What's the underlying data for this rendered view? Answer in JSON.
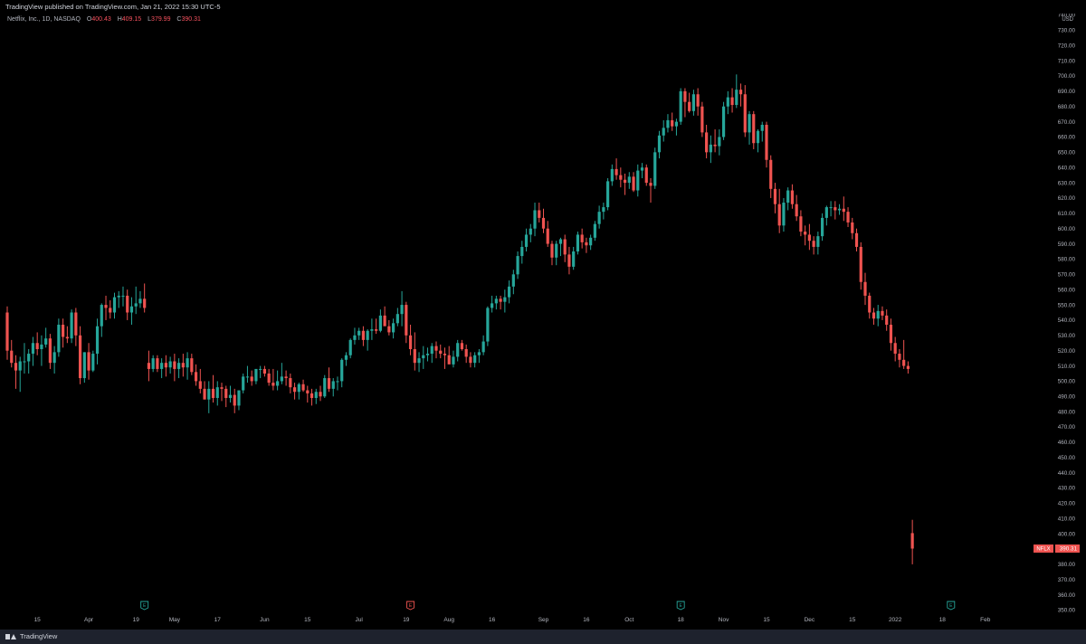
{
  "header": {
    "published_text": "TradingView published on TradingView.com, Jan 21, 2022 15:30 UTC-5"
  },
  "legend": {
    "symbol_text": "Netflix, Inc., 1D, NASDAQ",
    "open_label": "O",
    "open_value": "400.43",
    "high_label": "H",
    "high_value": "409.15",
    "low_label": "L",
    "low_value": "379.99",
    "close_label": "C",
    "close_value": "390.31"
  },
  "footer": {
    "brand": "TradingView"
  },
  "colors": {
    "background": "#000000",
    "up": "#26a69a",
    "down": "#ef5350",
    "axis_text": "#b2b5be",
    "event_up": "#26a69a",
    "event_down": "#ef5350"
  },
  "chart_data": {
    "type": "candlestick",
    "symbol": "NFLX",
    "last_price": "390.31",
    "currency": "USD",
    "ylim": [
      345,
      745
    ],
    "y_ticks": [
      350,
      360,
      370,
      380,
      390,
      400,
      410,
      420,
      430,
      440,
      450,
      460,
      470,
      480,
      490,
      500,
      510,
      520,
      530,
      540,
      550,
      560,
      570,
      580,
      590,
      600,
      610,
      620,
      630,
      640,
      650,
      660,
      670,
      680,
      690,
      700,
      710,
      720,
      730,
      740
    ],
    "x_ticks": [
      {
        "label": "15",
        "i": 7
      },
      {
        "label": "Apr",
        "i": 19
      },
      {
        "label": "19",
        "i": 30
      },
      {
        "label": "May",
        "i": 39
      },
      {
        "label": "17",
        "i": 49
      },
      {
        "label": "Jun",
        "i": 60
      },
      {
        "label": "15",
        "i": 70
      },
      {
        "label": "Jul",
        "i": 82
      },
      {
        "label": "19",
        "i": 93
      },
      {
        "label": "Aug",
        "i": 103
      },
      {
        "label": "16",
        "i": 113
      },
      {
        "label": "Sep",
        "i": 125
      },
      {
        "label": "16",
        "i": 135
      },
      {
        "label": "Oct",
        "i": 145
      },
      {
        "label": "18",
        "i": 157
      },
      {
        "label": "Nov",
        "i": 167
      },
      {
        "label": "15",
        "i": 177
      },
      {
        "label": "Dec",
        "i": 187
      },
      {
        "label": "15",
        "i": 197
      },
      {
        "label": "2022",
        "i": 207
      },
      {
        "label": "18",
        "i": 218
      },
      {
        "label": "Feb",
        "i": 228
      }
    ],
    "events": [
      {
        "type": "earnings",
        "label": "E",
        "i": 32,
        "color": "#26a69a"
      },
      {
        "type": "earnings",
        "label": "E",
        "i": 94,
        "color": "#ef5350"
      },
      {
        "type": "earnings",
        "label": "E",
        "i": 157,
        "color": "#26a69a"
      },
      {
        "type": "earnings",
        "label": "E",
        "i": 220,
        "color": "#26a69a"
      }
    ],
    "ohlc": [
      [
        545.0,
        549.0,
        514.0,
        520.0
      ],
      [
        520.0,
        527.0,
        509.0,
        512.0
      ],
      [
        512.0,
        517.0,
        495.0,
        507.0
      ],
      [
        507.0,
        516.0,
        493.0,
        513.0
      ],
      [
        513.0,
        525.0,
        505.0,
        513.0
      ],
      [
        513.0,
        521.0,
        505.0,
        518.0
      ],
      [
        518.0,
        529.0,
        510.0,
        525.0
      ],
      [
        525.0,
        532.0,
        517.0,
        521.0
      ],
      [
        521.0,
        530.0,
        510.0,
        524.0
      ],
      [
        524.0,
        535.0,
        522.0,
        528.0
      ],
      [
        528.0,
        531.0,
        508.0,
        512.0
      ],
      [
        512.0,
        523.0,
        505.0,
        519.0
      ],
      [
        519.0,
        541.0,
        516.0,
        537.0
      ],
      [
        537.0,
        541.0,
        522.0,
        529.0
      ],
      [
        529.0,
        536.0,
        525.0,
        528.0
      ],
      [
        528.0,
        547.0,
        525.0,
        545.0
      ],
      [
        545.0,
        548.0,
        523.0,
        530.0
      ],
      [
        530.0,
        536.0,
        498.0,
        502.0
      ],
      [
        502.0,
        519.0,
        499.0,
        519.0
      ],
      [
        519.0,
        525.0,
        501.0,
        507.0
      ],
      [
        507.0,
        520.0,
        506.0,
        518.0
      ],
      [
        518.0,
        541.0,
        511.0,
        536.0
      ],
      [
        536.0,
        551.0,
        529.0,
        550.0
      ],
      [
        550.0,
        556.0,
        540.0,
        548.0
      ],
      [
        548.0,
        553.0,
        541.0,
        545.0
      ],
      [
        545.0,
        558.0,
        541.0,
        555.0
      ],
      [
        555.0,
        559.0,
        548.0,
        556.0
      ],
      [
        556.0,
        562.0,
        549.0,
        556.0
      ],
      [
        556.0,
        560.0,
        540.0,
        545.0
      ],
      [
        545.0,
        555.0,
        537.0,
        549.0
      ],
      [
        549.0,
        562.0,
        544.0,
        551.0
      ],
      [
        551.0,
        559.0,
        548.0,
        554.0
      ],
      [
        554.0,
        564.0,
        545.0,
        548.0
      ],
      [
        512.0,
        520.0,
        500.0,
        508.0
      ],
      [
        508.0,
        517.0,
        506.0,
        515.0
      ],
      [
        515.0,
        517.0,
        506.0,
        508.0
      ],
      [
        508.0,
        515.0,
        502.0,
        512.0
      ],
      [
        512.0,
        517.0,
        503.0,
        509.0
      ],
      [
        509.0,
        516.0,
        505.0,
        513.0
      ],
      [
        513.0,
        518.0,
        500.0,
        508.0
      ],
      [
        508.0,
        515.0,
        502.0,
        512.0
      ],
      [
        512.0,
        518.0,
        503.0,
        509.0
      ],
      [
        509.0,
        519.0,
        501.0,
        515.0
      ],
      [
        515.0,
        518.0,
        504.0,
        506.0
      ],
      [
        506.0,
        511.0,
        497.0,
        500.0
      ],
      [
        500.0,
        508.0,
        492.0,
        495.0
      ],
      [
        495.0,
        500.0,
        488.0,
        488.0
      ],
      [
        488.0,
        500.0,
        479.0,
        495.0
      ],
      [
        495.0,
        504.0,
        486.0,
        489.0
      ],
      [
        489.0,
        500.0,
        484.0,
        496.0
      ],
      [
        496.0,
        499.0,
        487.0,
        495.0
      ],
      [
        495.0,
        497.0,
        483.0,
        489.0
      ],
      [
        489.0,
        497.0,
        486.0,
        491.0
      ],
      [
        491.0,
        495.0,
        479.0,
        484.0
      ],
      [
        484.0,
        494.0,
        481.0,
        494.0
      ],
      [
        494.0,
        505.0,
        492.0,
        503.0
      ],
      [
        503.0,
        510.0,
        499.0,
        503.0
      ],
      [
        503.0,
        507.0,
        497.0,
        500.0
      ],
      [
        500.0,
        508.0,
        498.0,
        508.0
      ],
      [
        508.0,
        510.0,
        502.0,
        508.0
      ],
      [
        508.0,
        510.0,
        503.0,
        505.0
      ],
      [
        505.0,
        508.0,
        497.0,
        499.0
      ],
      [
        499.0,
        508.0,
        494.0,
        497.0
      ],
      [
        497.0,
        507.0,
        494.0,
        500.0
      ],
      [
        500.0,
        512.0,
        498.0,
        503.0
      ],
      [
        503.0,
        507.0,
        497.0,
        502.0
      ],
      [
        502.0,
        505.0,
        492.0,
        496.0
      ],
      [
        496.0,
        499.0,
        488.0,
        493.0
      ],
      [
        493.0,
        499.0,
        488.0,
        498.0
      ],
      [
        498.0,
        501.0,
        493.0,
        494.0
      ],
      [
        494.0,
        497.0,
        486.0,
        492.0
      ],
      [
        492.0,
        495.0,
        484.0,
        489.0
      ],
      [
        489.0,
        495.0,
        485.0,
        493.0
      ],
      [
        493.0,
        497.0,
        487.0,
        490.0
      ],
      [
        490.0,
        504.0,
        489.0,
        502.0
      ],
      [
        502.0,
        509.0,
        493.0,
        495.0
      ],
      [
        495.0,
        502.0,
        490.0,
        500.0
      ],
      [
        500.0,
        503.0,
        494.0,
        500.0
      ],
      [
        500.0,
        515.0,
        496.0,
        514.0
      ],
      [
        514.0,
        519.0,
        510.0,
        517.0
      ],
      [
        517.0,
        528.0,
        515.0,
        527.0
      ],
      [
        527.0,
        535.0,
        524.0,
        530.0
      ],
      [
        530.0,
        535.0,
        527.0,
        533.0
      ],
      [
        533.0,
        536.0,
        523.0,
        527.0
      ],
      [
        527.0,
        534.0,
        520.0,
        533.0
      ],
      [
        533.0,
        541.0,
        527.0,
        534.0
      ],
      [
        534.0,
        541.0,
        531.0,
        533.0
      ],
      [
        533.0,
        547.0,
        532.0,
        543.0
      ],
      [
        543.0,
        549.0,
        537.0,
        536.0
      ],
      [
        536.0,
        540.0,
        530.0,
        532.0
      ],
      [
        532.0,
        541.0,
        528.0,
        538.0
      ],
      [
        538.0,
        548.0,
        536.0,
        544.0
      ],
      [
        544.0,
        559.0,
        536.0,
        550.0
      ],
      [
        550.0,
        552.0,
        525.0,
        530.0
      ],
      [
        530.0,
        537.0,
        517.0,
        521.0
      ],
      [
        521.0,
        532.0,
        507.0,
        512.0
      ],
      [
        512.0,
        519.0,
        506.0,
        515.0
      ],
      [
        515.0,
        523.0,
        508.0,
        517.0
      ],
      [
        517.0,
        522.0,
        513.0,
        518.0
      ],
      [
        518.0,
        525.0,
        512.0,
        523.0
      ],
      [
        523.0,
        526.0,
        515.0,
        520.0
      ],
      [
        520.0,
        524.0,
        515.0,
        518.0
      ],
      [
        518.0,
        522.0,
        508.0,
        517.0
      ],
      [
        517.0,
        523.0,
        514.0,
        511.0
      ],
      [
        511.0,
        520.0,
        509.0,
        516.0
      ],
      [
        516.0,
        527.0,
        513.0,
        525.0
      ],
      [
        525.0,
        527.0,
        520.0,
        521.0
      ],
      [
        521.0,
        524.0,
        512.0,
        516.0
      ],
      [
        516.0,
        519.0,
        509.0,
        512.0
      ],
      [
        512.0,
        519.0,
        509.0,
        517.0
      ],
      [
        517.0,
        521.0,
        512.0,
        519.0
      ],
      [
        519.0,
        530.0,
        517.0,
        526.0
      ],
      [
        526.0,
        549.0,
        523.0,
        548.0
      ],
      [
        548.0,
        556.0,
        545.0,
        551.0
      ],
      [
        551.0,
        556.0,
        547.0,
        554.0
      ],
      [
        554.0,
        556.0,
        547.0,
        552.0
      ],
      [
        552.0,
        560.0,
        545.0,
        555.0
      ],
      [
        555.0,
        566.0,
        551.0,
        562.0
      ],
      [
        562.0,
        573.0,
        557.0,
        570.0
      ],
      [
        570.0,
        585.0,
        567.0,
        582.0
      ],
      [
        582.0,
        592.0,
        577.0,
        588.0
      ],
      [
        588.0,
        600.0,
        585.0,
        596.0
      ],
      [
        596.0,
        603.0,
        591.0,
        600.0
      ],
      [
        600.0,
        617.0,
        595.0,
        612.0
      ],
      [
        612.0,
        617.0,
        604.0,
        607.0
      ],
      [
        607.0,
        613.0,
        597.0,
        600.0
      ],
      [
        600.0,
        605.0,
        588.0,
        590.0
      ],
      [
        590.0,
        592.0,
        576.0,
        581.0
      ],
      [
        581.0,
        592.0,
        576.0,
        590.0
      ],
      [
        590.0,
        594.0,
        582.0,
        593.0
      ],
      [
        593.0,
        596.0,
        578.0,
        583.0
      ],
      [
        583.0,
        588.0,
        570.0,
        575.0
      ],
      [
        575.0,
        588.0,
        573.0,
        585.0
      ],
      [
        585.0,
        598.0,
        583.0,
        596.0
      ],
      [
        596.0,
        600.0,
        587.0,
        591.0
      ],
      [
        591.0,
        594.0,
        584.0,
        589.0
      ],
      [
        589.0,
        596.0,
        586.0,
        594.0
      ],
      [
        594.0,
        605.0,
        592.0,
        603.0
      ],
      [
        603.0,
        615.0,
        600.0,
        611.0
      ],
      [
        611.0,
        617.0,
        606.0,
        614.0
      ],
      [
        614.0,
        633.0,
        612.0,
        631.0
      ],
      [
        631.0,
        642.0,
        628.0,
        639.0
      ],
      [
        639.0,
        646.0,
        632.0,
        635.0
      ],
      [
        635.0,
        640.0,
        627.0,
        632.0
      ],
      [
        632.0,
        636.0,
        622.0,
        630.0
      ],
      [
        630.0,
        637.0,
        626.0,
        634.0
      ],
      [
        634.0,
        637.0,
        624.0,
        625.0
      ],
      [
        625.0,
        642.0,
        621.0,
        638.0
      ],
      [
        638.0,
        643.0,
        633.0,
        640.0
      ],
      [
        640.0,
        642.0,
        628.0,
        630.0
      ],
      [
        630.0,
        633.0,
        617.0,
        628.0
      ],
      [
        628.0,
        653.0,
        626.0,
        650.0
      ],
      [
        650.0,
        664.0,
        646.0,
        661.0
      ],
      [
        661.0,
        671.0,
        657.0,
        666.0
      ],
      [
        666.0,
        675.0,
        663.0,
        671.0
      ],
      [
        671.0,
        676.0,
        664.0,
        667.0
      ],
      [
        667.0,
        672.0,
        661.0,
        670.0
      ],
      [
        670.0,
        692.0,
        668.0,
        690.0
      ],
      [
        690.0,
        692.0,
        673.0,
        683.0
      ],
      [
        683.0,
        689.0,
        676.0,
        677.0
      ],
      [
        677.0,
        691.0,
        674.0,
        688.0
      ],
      [
        688.0,
        692.0,
        674.0,
        680.0
      ],
      [
        680.0,
        683.0,
        660.0,
        663.0
      ],
      [
        663.0,
        668.0,
        646.0,
        650.0
      ],
      [
        650.0,
        661.0,
        643.0,
        655.0
      ],
      [
        655.0,
        665.0,
        650.0,
        654.0
      ],
      [
        654.0,
        665.0,
        648.0,
        660.0
      ],
      [
        660.0,
        683.0,
        658.0,
        680.0
      ],
      [
        680.0,
        690.0,
        675.0,
        686.0
      ],
      [
        686.0,
        692.0,
        676.0,
        681.0
      ],
      [
        681.0,
        701.0,
        679.0,
        691.0
      ],
      [
        691.0,
        695.0,
        680.0,
        688.0
      ],
      [
        688.0,
        694.0,
        660.0,
        663.0
      ],
      [
        663.0,
        677.0,
        655.0,
        675.0
      ],
      [
        675.0,
        677.0,
        652.0,
        656.0
      ],
      [
        656.0,
        665.0,
        650.0,
        664.0
      ],
      [
        664.0,
        670.0,
        657.0,
        668.0
      ],
      [
        668.0,
        670.0,
        640.0,
        645.0
      ],
      [
        645.0,
        648.0,
        620.0,
        626.0
      ],
      [
        626.0,
        630.0,
        610.0,
        616.0
      ],
      [
        616.0,
        626.0,
        597.0,
        602.0
      ],
      [
        602.0,
        620.0,
        598.0,
        617.0
      ],
      [
        617.0,
        627.0,
        612.0,
        625.0
      ],
      [
        625.0,
        629.0,
        613.0,
        616.0
      ],
      [
        616.0,
        622.0,
        605.0,
        608.0
      ],
      [
        608.0,
        612.0,
        595.0,
        598.0
      ],
      [
        598.0,
        602.0,
        589.0,
        596.0
      ],
      [
        596.0,
        603.0,
        586.0,
        592.0
      ],
      [
        592.0,
        595.0,
        583.0,
        588.0
      ],
      [
        588.0,
        598.0,
        583.0,
        595.0
      ],
      [
        595.0,
        610.0,
        592.0,
        607.0
      ],
      [
        607.0,
        615.0,
        602.0,
        614.0
      ],
      [
        614.0,
        618.0,
        608.0,
        614.0
      ],
      [
        614.0,
        618.0,
        606.0,
        612.0
      ],
      [
        612.0,
        616.0,
        609.0,
        613.0
      ],
      [
        613.0,
        621.0,
        605.0,
        611.0
      ],
      [
        611.0,
        614.0,
        601.0,
        604.0
      ],
      [
        604.0,
        607.0,
        593.0,
        597.0
      ],
      [
        597.0,
        600.0,
        585.0,
        588.0
      ],
      [
        588.0,
        591.0,
        560.0,
        565.0
      ],
      [
        565.0,
        571.0,
        550.0,
        556.0
      ],
      [
        556.0,
        558.0,
        541.0,
        545.0
      ],
      [
        545.0,
        548.0,
        537.0,
        541.0
      ],
      [
        541.0,
        550.0,
        536.0,
        546.0
      ],
      [
        546.0,
        549.0,
        540.0,
        543.0
      ],
      [
        543.0,
        547.0,
        533.0,
        537.0
      ],
      [
        537.0,
        541.0,
        520.0,
        525.0
      ],
      [
        525.0,
        529.0,
        513.0,
        518.0
      ],
      [
        518.0,
        521.0,
        509.0,
        514.0
      ],
      [
        514.0,
        527.0,
        508.0,
        510.0
      ],
      [
        510.0,
        513.0,
        505.0,
        508.0
      ],
      [
        400.43,
        409.15,
        379.99,
        390.31
      ]
    ]
  }
}
